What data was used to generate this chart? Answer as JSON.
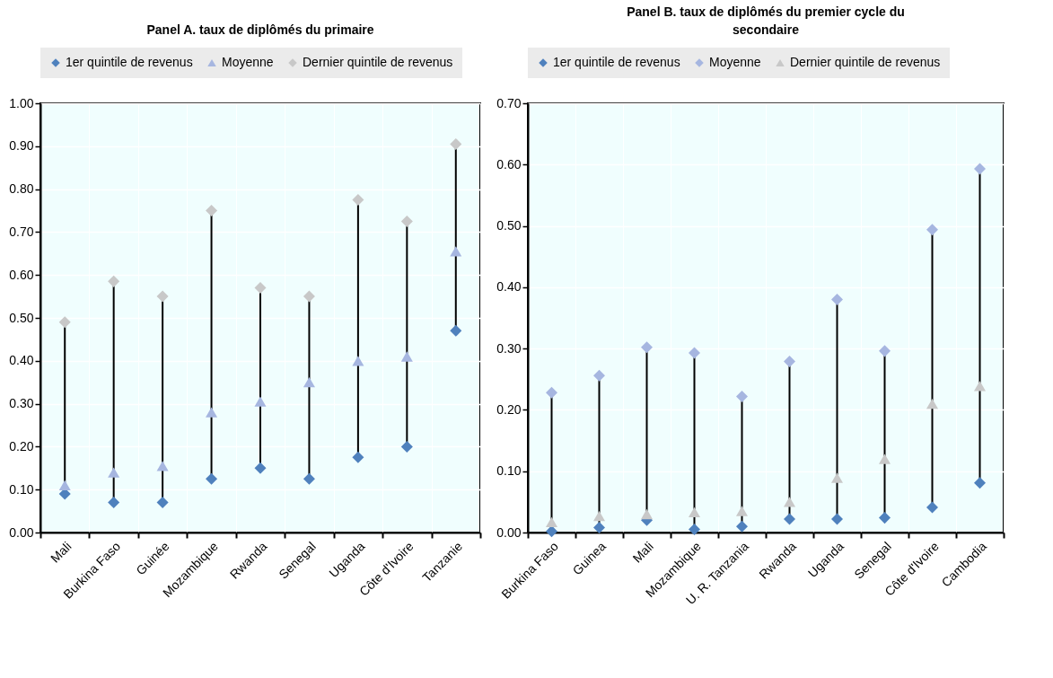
{
  "chart_data": [
    {
      "type": "scatter",
      "title": "Panel A. taux de diplômés du primaire",
      "categories": [
        "Mali",
        "Burkina Faso",
        "Guinée",
        "Mozambique",
        "Rwanda",
        "Senegal",
        "Uganda",
        "Côte d'Ivoire",
        "Tanzanie"
      ],
      "ylim": [
        0,
        1
      ],
      "yticks": [
        {
          "value": 0,
          "label": "0.00"
        },
        {
          "value": 0.1,
          "label": "0.10"
        },
        {
          "value": 0.2,
          "label": "0.20"
        },
        {
          "value": 0.3,
          "label": "0.30"
        },
        {
          "value": 0.4,
          "label": "0.40"
        },
        {
          "value": 0.5,
          "label": "0.50"
        },
        {
          "value": 0.6,
          "label": "0.60"
        },
        {
          "value": 0.7,
          "label": "0.70"
        },
        {
          "value": 0.8,
          "label": "0.80"
        },
        {
          "value": 0.9,
          "label": "0.90"
        },
        {
          "value": 1,
          "label": "1.00"
        }
      ],
      "grid": true,
      "legend": "top",
      "series": [
        {
          "name": "1er quintile de revenus",
          "color": "#4f81bd",
          "marker": "diamond",
          "values": [
            0.09,
            0.07,
            0.07,
            0.125,
            0.15,
            0.125,
            0.175,
            0.2,
            0.47
          ]
        },
        {
          "name": "Moyenne",
          "color": "#a6b6e0",
          "marker": "triangle",
          "values": [
            0.11,
            0.14,
            0.155,
            0.28,
            0.305,
            0.35,
            0.4,
            0.41,
            0.655
          ]
        },
        {
          "name": "Dernier quintile de revenus",
          "color": "#c8c8c8",
          "marker": "diamond",
          "values": [
            0.49,
            0.585,
            0.55,
            0.75,
            0.57,
            0.55,
            0.775,
            0.725,
            0.905
          ]
        }
      ]
    },
    {
      "type": "scatter",
      "title": "Panel B. taux de diplômés du premier cycle du secondaire",
      "categories": [
        "Burkina Faso",
        "Guinea",
        "Mali",
        "Mozambique",
        "U. R. Tanzania",
        "Rwanda",
        "Uganda",
        "Senegal",
        "Côte d'Ivoire",
        "Cambodia"
      ],
      "ylim": [
        0,
        0.7
      ],
      "yticks": [
        {
          "value": 0,
          "label": "0.00"
        },
        {
          "value": 0.1,
          "label": "0.10"
        },
        {
          "value": 0.2,
          "label": "0.20"
        },
        {
          "value": 0.3,
          "label": "0.30"
        },
        {
          "value": 0.4,
          "label": "0.40"
        },
        {
          "value": 0.5,
          "label": "0.50"
        },
        {
          "value": 0.6,
          "label": "0.60"
        },
        {
          "value": 0.7,
          "label": "0.70"
        }
      ],
      "grid": true,
      "legend": "top",
      "series": [
        {
          "name": "1er quintile de revenus",
          "color": "#4f81bd",
          "marker": "diamond",
          "values": [
            0.002,
            0.008,
            0.02,
            0.005,
            0.01,
            0.022,
            0.022,
            0.024,
            0.041,
            0.081
          ]
        },
        {
          "name": "Moyenne",
          "color": "#a6b6e0",
          "marker": "diamond",
          "values": [
            0.228,
            0.256,
            0.302,
            0.293,
            0.222,
            0.279,
            0.38,
            0.296,
            0.494,
            0.593
          ]
        },
        {
          "name": "Dernier quintile de revenus",
          "color": "#c8c8c8",
          "marker": "triangle",
          "values": [
            0.017,
            0.027,
            0.03,
            0.033,
            0.035,
            0.05,
            0.089,
            0.12,
            0.21,
            0.239
          ]
        }
      ]
    }
  ]
}
